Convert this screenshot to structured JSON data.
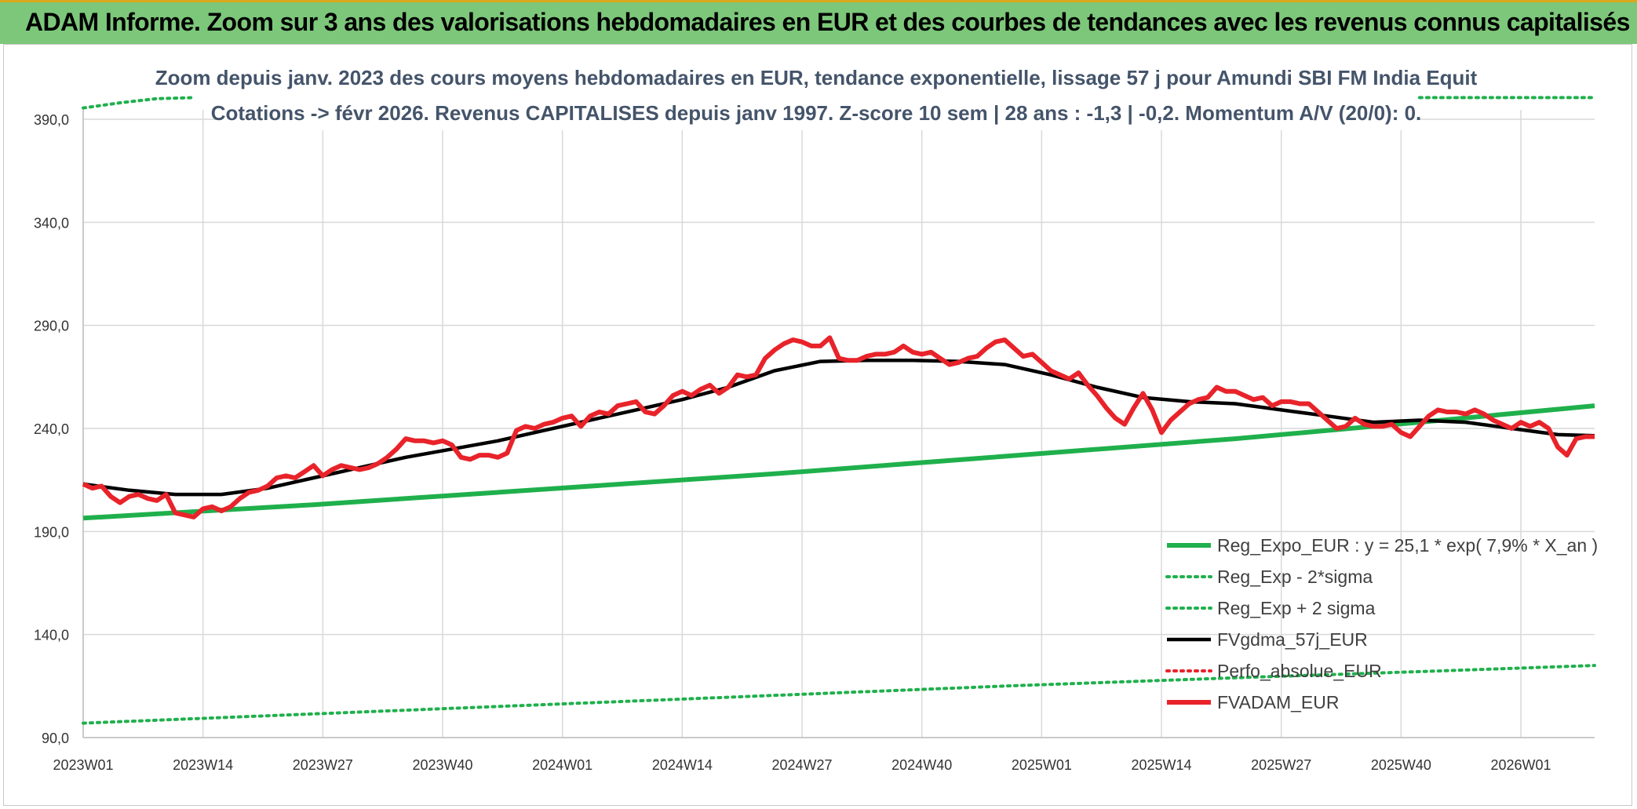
{
  "banner": {
    "title": "ADAM Informe. Zoom sur 3 ans des valorisations hebdomadaires en EUR et des courbes de tendances avec les revenus connus capitalisés"
  },
  "chart_data": {
    "type": "line",
    "title": "Zoom depuis janv. 2023 des cours moyens hebdomadaires en EUR, tendance exponentielle, lissage 57 j pour Amundi SBI FM India Equit",
    "subtitle": "Cotations -> févr 2026. Revenus CAPITALISES depuis janv 1997. Z-score 10 sem | 28 ans : -1,3 | -0,2. Momentum A/V (20/0): 0.",
    "xlabel": "",
    "ylabel": "",
    "ylim": [
      90,
      400
    ],
    "y_ticks": [
      "90,0",
      "140,0",
      "190,0",
      "240,0",
      "290,0",
      "340,0",
      "390,0"
    ],
    "y_tick_values": [
      90,
      140,
      190,
      240,
      290,
      340,
      390
    ],
    "x_ticks": [
      "2023W01",
      "2023W14",
      "2023W27",
      "2023W40",
      "2024W01",
      "2024W14",
      "2024W27",
      "2024W40",
      "2025W01",
      "2025W14",
      "2025W27",
      "2025W40",
      "2026W01"
    ],
    "x_tick_weeks": [
      0,
      13,
      26,
      39,
      52,
      65,
      78,
      91,
      104,
      117,
      130,
      143,
      156
    ],
    "x_range_weeks": [
      0,
      164
    ],
    "gridlines": true,
    "legend_position": "bottom-right",
    "series": [
      {
        "name": "Reg_Expo_EUR : y = 25,1 * exp( 7,9% *  X_an )",
        "color": "#1fb04c",
        "style": "solid-thick",
        "points": [
          [
            0,
            196.5
          ],
          [
            25,
            203
          ],
          [
            50,
            210.5
          ],
          [
            75,
            218
          ],
          [
            100,
            226.5
          ],
          [
            125,
            235
          ],
          [
            145,
            243
          ],
          [
            164,
            251
          ]
        ]
      },
      {
        "name": "Reg_Exp - 2*sigma",
        "color": "#1fb04c",
        "style": "dotted",
        "points": [
          [
            0,
            97
          ],
          [
            25,
            101.5
          ],
          [
            50,
            106
          ],
          [
            75,
            110.5
          ],
          [
            100,
            115
          ],
          [
            125,
            119
          ],
          [
            145,
            122
          ],
          [
            164,
            125
          ]
        ]
      },
      {
        "name": "Reg_Exp + 2 sigma",
        "color": "#1fb04c",
        "style": "dotted",
        "points": [
          [
            0,
            395.5
          ],
          [
            4,
            398
          ],
          [
            8,
            400
          ],
          [
            12,
            400.5
          ]
        ],
        "points_right": [
          [
            145,
            400.5
          ],
          [
            164,
            400.5
          ]
        ]
      },
      {
        "name": "FVgdma_57j_EUR",
        "color": "#000000",
        "style": "solid",
        "points": [
          [
            0,
            213
          ],
          [
            5,
            210
          ],
          [
            10,
            208
          ],
          [
            15,
            208
          ],
          [
            20,
            211
          ],
          [
            25,
            216
          ],
          [
            30,
            221
          ],
          [
            35,
            226
          ],
          [
            40,
            230
          ],
          [
            45,
            234
          ],
          [
            50,
            239
          ],
          [
            55,
            244
          ],
          [
            60,
            249
          ],
          [
            65,
            254
          ],
          [
            70,
            260
          ],
          [
            75,
            268
          ],
          [
            80,
            272.5
          ],
          [
            85,
            273
          ],
          [
            90,
            273
          ],
          [
            95,
            272.5
          ],
          [
            100,
            271
          ],
          [
            105,
            266
          ],
          [
            110,
            260
          ],
          [
            115,
            255
          ],
          [
            120,
            253
          ],
          [
            125,
            252
          ],
          [
            130,
            249
          ],
          [
            135,
            246
          ],
          [
            140,
            243
          ],
          [
            145,
            244
          ],
          [
            150,
            243
          ],
          [
            155,
            240
          ],
          [
            160,
            237
          ],
          [
            164,
            236.5
          ]
        ]
      },
      {
        "name": "Perfo_absolue_EUR",
        "color": "#e8232a",
        "style": "dotted",
        "points": []
      },
      {
        "name": "FVADAM_EUR",
        "color": "#e8232a",
        "style": "solid-thick",
        "points": [
          [
            0,
            213
          ],
          [
            1,
            211
          ],
          [
            2,
            212
          ],
          [
            3,
            207
          ],
          [
            4,
            204
          ],
          [
            5,
            207
          ],
          [
            6,
            208
          ],
          [
            7,
            206
          ],
          [
            8,
            205
          ],
          [
            9,
            208
          ],
          [
            10,
            199
          ],
          [
            11,
            198
          ],
          [
            12,
            197
          ],
          [
            13,
            201
          ],
          [
            14,
            202
          ],
          [
            15,
            200
          ],
          [
            16,
            202
          ],
          [
            17,
            206
          ],
          [
            18,
            209
          ],
          [
            19,
            210
          ],
          [
            20,
            212
          ],
          [
            21,
            216
          ],
          [
            22,
            217
          ],
          [
            23,
            216
          ],
          [
            24,
            219
          ],
          [
            25,
            222
          ],
          [
            26,
            217
          ],
          [
            27,
            220
          ],
          [
            28,
            222
          ],
          [
            29,
            221
          ],
          [
            30,
            220
          ],
          [
            31,
            221
          ],
          [
            32,
            223
          ],
          [
            33,
            226
          ],
          [
            34,
            230
          ],
          [
            35,
            235
          ],
          [
            36,
            234
          ],
          [
            37,
            234
          ],
          [
            38,
            233
          ],
          [
            39,
            234
          ],
          [
            40,
            232
          ],
          [
            41,
            226
          ],
          [
            42,
            225
          ],
          [
            43,
            227
          ],
          [
            44,
            227
          ],
          [
            45,
            226
          ],
          [
            46,
            228
          ],
          [
            47,
            239
          ],
          [
            48,
            241
          ],
          [
            49,
            240
          ],
          [
            50,
            242
          ],
          [
            51,
            243
          ],
          [
            52,
            245
          ],
          [
            53,
            246
          ],
          [
            54,
            241
          ],
          [
            55,
            246
          ],
          [
            56,
            248
          ],
          [
            57,
            247
          ],
          [
            58,
            251
          ],
          [
            59,
            252
          ],
          [
            60,
            253
          ],
          [
            61,
            248
          ],
          [
            62,
            247
          ],
          [
            63,
            251
          ],
          [
            64,
            256
          ],
          [
            65,
            258
          ],
          [
            66,
            256
          ],
          [
            67,
            259
          ],
          [
            68,
            261
          ],
          [
            69,
            257
          ],
          [
            70,
            260
          ],
          [
            71,
            266
          ],
          [
            72,
            265
          ],
          [
            73,
            266
          ],
          [
            74,
            274
          ],
          [
            75,
            278
          ],
          [
            76,
            281
          ],
          [
            77,
            283
          ],
          [
            78,
            282
          ],
          [
            79,
            280
          ],
          [
            80,
            280
          ],
          [
            81,
            284
          ],
          [
            82,
            274
          ],
          [
            83,
            273
          ],
          [
            84,
            273
          ],
          [
            85,
            275
          ],
          [
            86,
            276
          ],
          [
            87,
            276
          ],
          [
            88,
            277
          ],
          [
            89,
            280
          ],
          [
            90,
            277
          ],
          [
            91,
            276
          ],
          [
            92,
            277
          ],
          [
            93,
            274
          ],
          [
            94,
            271
          ],
          [
            95,
            272
          ],
          [
            96,
            274
          ],
          [
            97,
            275
          ],
          [
            98,
            279
          ],
          [
            99,
            282
          ],
          [
            100,
            283
          ],
          [
            101,
            279
          ],
          [
            102,
            275
          ],
          [
            103,
            276
          ],
          [
            104,
            272
          ],
          [
            105,
            268
          ],
          [
            106,
            266
          ],
          [
            107,
            264
          ],
          [
            108,
            267
          ],
          [
            109,
            261
          ],
          [
            110,
            256
          ],
          [
            111,
            250
          ],
          [
            112,
            245
          ],
          [
            113,
            242
          ],
          [
            114,
            250
          ],
          [
            115,
            257
          ],
          [
            116,
            249
          ],
          [
            117,
            238
          ],
          [
            118,
            244
          ],
          [
            119,
            248
          ],
          [
            120,
            252
          ],
          [
            121,
            254
          ],
          [
            122,
            255
          ],
          [
            123,
            260
          ],
          [
            124,
            258
          ],
          [
            125,
            258
          ],
          [
            126,
            256
          ],
          [
            127,
            254
          ],
          [
            128,
            255
          ],
          [
            129,
            251
          ],
          [
            130,
            253
          ],
          [
            131,
            253
          ],
          [
            132,
            252
          ],
          [
            133,
            252
          ],
          [
            134,
            248
          ],
          [
            135,
            244
          ],
          [
            136,
            240
          ],
          [
            137,
            241
          ],
          [
            138,
            245
          ],
          [
            139,
            242
          ],
          [
            140,
            241
          ],
          [
            141,
            241
          ],
          [
            142,
            242
          ],
          [
            143,
            238
          ],
          [
            144,
            236
          ],
          [
            145,
            241
          ],
          [
            146,
            246
          ],
          [
            147,
            249
          ],
          [
            148,
            248
          ],
          [
            149,
            248
          ],
          [
            150,
            247
          ],
          [
            151,
            249
          ],
          [
            152,
            247
          ],
          [
            153,
            244
          ],
          [
            154,
            242
          ],
          [
            155,
            240
          ],
          [
            156,
            243
          ],
          [
            157,
            241
          ],
          [
            158,
            243
          ],
          [
            159,
            240
          ],
          [
            160,
            231
          ],
          [
            161,
            227
          ],
          [
            162,
            235
          ],
          [
            163,
            236
          ],
          [
            164,
            236
          ]
        ]
      }
    ]
  }
}
